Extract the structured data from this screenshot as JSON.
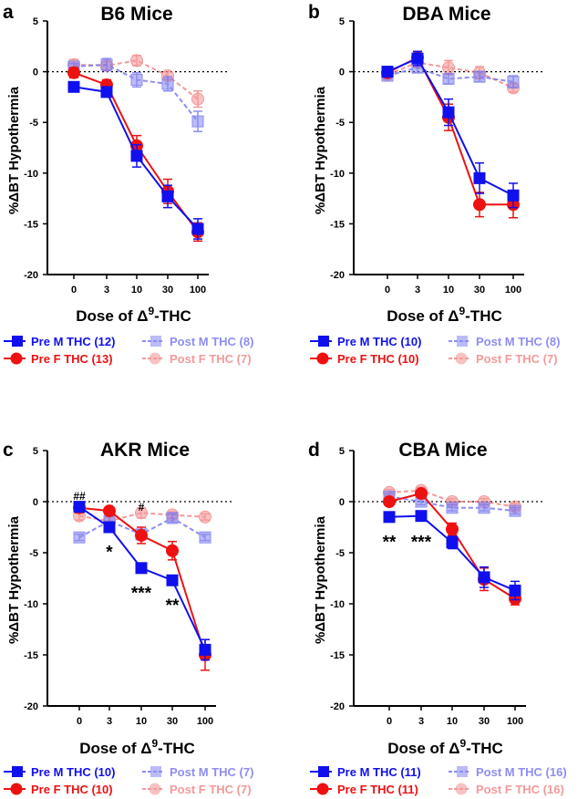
{
  "figure": {
    "ylabel": "%ΔBT Hypothermia",
    "xlabel_pre": "Dose of Δ",
    "xlabel_sup": "9",
    "xlabel_post": "-THC",
    "colors": {
      "pre_m": "#1010ee",
      "pre_f": "#ee1111",
      "post_m": "#7a7af0",
      "post_f": "#f07878"
    }
  },
  "chart_data": [
    {
      "type": "line",
      "letter": "a",
      "title": "B6 Mice",
      "categories": [
        "0",
        "3",
        "10",
        "30",
        "100"
      ],
      "yticks": [
        5,
        0,
        -5,
        -10,
        -15,
        -20
      ],
      "ylim": [
        -20,
        5
      ],
      "grid": false,
      "series": [
        {
          "key": "pre_m",
          "name": "Pre M THC (12)",
          "values": [
            -1.5,
            -2.0,
            -8.3,
            -12.3,
            -15.5
          ],
          "errors": [
            0.3,
            0.3,
            1.1,
            1.1,
            1.0
          ]
        },
        {
          "key": "pre_f",
          "name": "Pre F THC (13)",
          "values": [
            -0.1,
            -1.3,
            -7.3,
            -11.8,
            -15.8
          ],
          "errors": [
            0.5,
            0.5,
            1.0,
            1.2,
            0.9
          ]
        },
        {
          "key": "post_m",
          "name": "Post M THC (8)",
          "values": [
            0.5,
            0.7,
            -0.8,
            -1.2,
            -4.9
          ],
          "errors": [
            0.3,
            0.6,
            0.7,
            0.7,
            1.0
          ]
        },
        {
          "key": "post_f",
          "name": "Post F THC (7)",
          "values": [
            0.7,
            0.6,
            1.1,
            -0.4,
            -2.7
          ],
          "errors": [
            0.5,
            0.4,
            0.5,
            0.4,
            0.8
          ]
        }
      ],
      "annotations": []
    },
    {
      "type": "line",
      "letter": "b",
      "title": "DBA Mice",
      "categories": [
        "0",
        "3",
        "10",
        "30",
        "100"
      ],
      "yticks": [
        5,
        0,
        -5,
        -10,
        -15,
        -20
      ],
      "ylim": [
        -20,
        5
      ],
      "grid": false,
      "series": [
        {
          "key": "pre_m",
          "name": "Pre M THC (10)",
          "values": [
            0.0,
            1.3,
            -4.0,
            -10.5,
            -12.2
          ],
          "errors": [
            0.5,
            0.7,
            1.3,
            1.5,
            1.2
          ]
        },
        {
          "key": "pre_f",
          "name": "Pre F THC (10)",
          "values": [
            -0.1,
            1.4,
            -4.5,
            -13.1,
            -13.1
          ],
          "errors": [
            0.3,
            0.6,
            1.3,
            1.2,
            1.3
          ]
        },
        {
          "key": "post_m",
          "name": "Post M THC (8)",
          "values": [
            -0.4,
            0.4,
            -0.7,
            -0.5,
            -1.0
          ],
          "errors": [
            0.3,
            0.5,
            0.5,
            0.5,
            0.6
          ]
        },
        {
          "key": "post_f",
          "name": "Post F THC (7)",
          "values": [
            -0.3,
            0.9,
            0.4,
            -0.1,
            -1.6
          ],
          "errors": [
            0.3,
            0.5,
            0.7,
            0.6,
            0.4
          ]
        }
      ],
      "annotations": []
    },
    {
      "type": "line",
      "letter": "c",
      "title": "AKR Mice",
      "categories": [
        "0",
        "3",
        "10",
        "30",
        "100"
      ],
      "yticks": [
        5,
        0,
        -5,
        -10,
        -15,
        -20
      ],
      "ylim": [
        -20,
        5
      ],
      "grid": false,
      "series": [
        {
          "key": "pre_m",
          "name": "Pre M THC (10)",
          "values": [
            -0.5,
            -2.5,
            -6.5,
            -7.7,
            -14.5
          ],
          "errors": [
            0.4,
            0.4,
            0.3,
            0.4,
            1.0
          ]
        },
        {
          "key": "pre_f",
          "name": "Pre F THC (10)",
          "values": [
            -0.6,
            -0.9,
            -3.3,
            -4.8,
            -15.0
          ],
          "errors": [
            0.5,
            0.3,
            0.8,
            0.9,
            1.5
          ]
        },
        {
          "key": "post_m",
          "name": "Post M THC (7)",
          "values": [
            -3.5,
            -1.9,
            -3.2,
            -1.6,
            -3.5
          ],
          "errors": [
            0.3,
            0.5,
            0.5,
            0.4,
            0.3
          ]
        },
        {
          "key": "post_f",
          "name": "Post F THC (7)",
          "values": [
            -1.4,
            -1.9,
            -1.1,
            -1.3,
            -1.5
          ],
          "errors": [
            0.4,
            0.4,
            0.5,
            0.3,
            0.3
          ]
        }
      ],
      "annotations": [
        {
          "text": "##",
          "cat": 0,
          "value": 0.2,
          "kind": "hash"
        },
        {
          "text": "*",
          "cat": 1,
          "value": -4.6,
          "kind": "star"
        },
        {
          "text": "#",
          "cat": 2,
          "value": -0.9,
          "kind": "hash"
        },
        {
          "text": "***",
          "cat": 2,
          "value": -8.6,
          "kind": "star"
        },
        {
          "text": "**",
          "cat": 3,
          "value": -9.8,
          "kind": "star"
        }
      ]
    },
    {
      "type": "line",
      "letter": "d",
      "title": "CBA Mice",
      "categories": [
        "0",
        "3",
        "10",
        "30",
        "100"
      ],
      "yticks": [
        5,
        0,
        -5,
        -10,
        -15,
        -20
      ],
      "ylim": [
        -20,
        5
      ],
      "grid": false,
      "series": [
        {
          "key": "pre_m",
          "name": "Pre M THC (11)",
          "values": [
            -1.5,
            -1.4,
            -4.0,
            -7.4,
            -8.7
          ],
          "errors": [
            0.3,
            0.3,
            0.6,
            1.0,
            0.9
          ]
        },
        {
          "key": "pre_f",
          "name": "Pre F THC (11)",
          "values": [
            0.0,
            0.8,
            -2.7,
            -7.6,
            -9.5
          ],
          "errors": [
            0.3,
            0.4,
            0.6,
            1.1,
            0.6
          ]
        },
        {
          "key": "post_m",
          "name": "Post M THC (16)",
          "values": [
            0.5,
            0.0,
            -0.6,
            -0.6,
            -0.9
          ],
          "errors": [
            0.3,
            0.3,
            0.3,
            0.3,
            0.3
          ]
        },
        {
          "key": "post_f",
          "name": "Post F THC (16)",
          "values": [
            0.9,
            1.1,
            0.0,
            0.0,
            -0.5
          ],
          "errors": [
            0.3,
            0.3,
            0.3,
            0.3,
            0.3
          ]
        }
      ],
      "annotations": [
        {
          "text": "**",
          "cat": 0,
          "value": -3.6,
          "kind": "star"
        },
        {
          "text": "***",
          "cat": 1,
          "value": -3.6,
          "kind": "star"
        }
      ]
    }
  ]
}
